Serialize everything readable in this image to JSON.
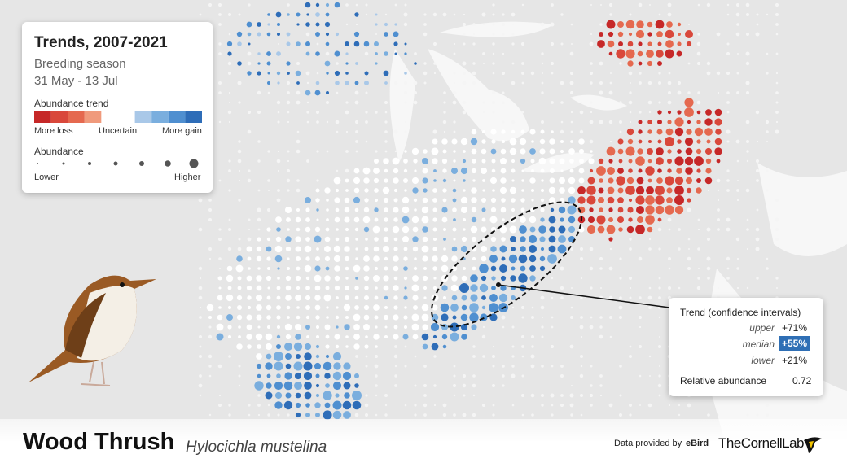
{
  "legend": {
    "title": "Trends, 2007-2021",
    "season": "Breeding season",
    "dates": "31 May - 13 Jul",
    "trend_label": "Abundance trend",
    "trend_low": "More loss",
    "trend_mid": "Uncertain",
    "trend_high": "More gain",
    "abundance_label": "Abundance",
    "abundance_low": "Lower",
    "abundance_high": "Higher"
  },
  "callout": {
    "title": "Trend (confidence intervals)",
    "rows": [
      {
        "label": "upper",
        "value": "+71%"
      },
      {
        "label": "median",
        "value": "+55%"
      },
      {
        "label": "lower",
        "value": "+21%"
      }
    ],
    "abundance_label": "Relative abundance",
    "abundance_value": 0.72
  },
  "footer": {
    "common_name": "Wood Thrush",
    "scientific_name": "Hylocichla mustelina",
    "credit": "Data provided by",
    "source": "eBird",
    "org": "TheCornellLab"
  }
}
